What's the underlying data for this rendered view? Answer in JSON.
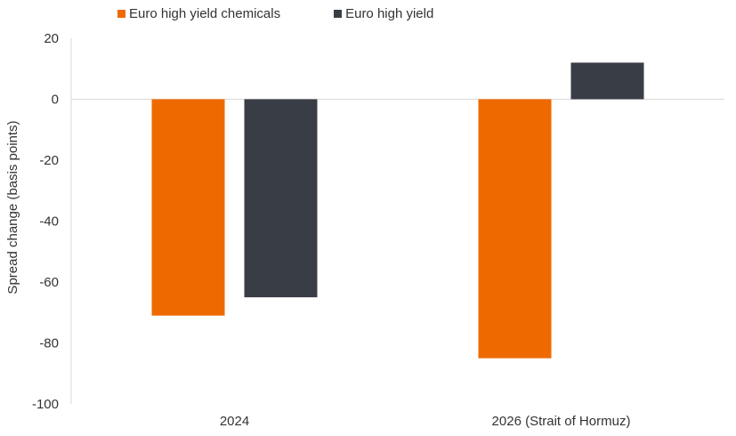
{
  "chart_data": {
    "type": "bar",
    "categories": [
      "2024",
      "2026 (Strait of Hormuz)"
    ],
    "series": [
      {
        "name": "Euro high yield chemicals",
        "values": [
          -71,
          -85
        ],
        "color": "#EE6A00"
      },
      {
        "name": "Euro high yield",
        "values": [
          -65,
          12
        ],
        "color": "#393D46"
      }
    ],
    "title": "",
    "xlabel": "",
    "ylabel": "Spread change (basis points)",
    "ylim": [
      -100,
      20
    ],
    "yticks": [
      20,
      0,
      -20,
      -40,
      -60,
      -80,
      -100
    ],
    "grid": false,
    "legend": "top-left"
  }
}
